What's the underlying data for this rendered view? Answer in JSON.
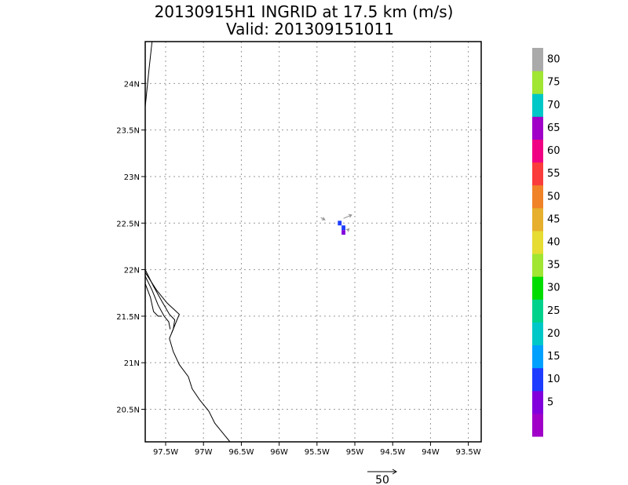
{
  "chart_data": {
    "type": "heatmap",
    "title": "20130915H1 INGRID at 17.5 km (m/s)",
    "subtitle": "Valid: 201309151011",
    "xlim": [
      -97.77,
      -93.33
    ],
    "ylim": [
      20.15,
      24.45
    ],
    "x_ticks": [
      {
        "value": -97.5,
        "label": "97.5W"
      },
      {
        "value": -97.0,
        "label": "97W"
      },
      {
        "value": -96.5,
        "label": "96.5W"
      },
      {
        "value": -96.0,
        "label": "96W"
      },
      {
        "value": -95.5,
        "label": "95.5W"
      },
      {
        "value": -95.0,
        "label": "95W"
      },
      {
        "value": -94.5,
        "label": "94.5W"
      },
      {
        "value": -94.0,
        "label": "94W"
      },
      {
        "value": -93.5,
        "label": "93.5W"
      }
    ],
    "y_ticks": [
      {
        "value": 20.5,
        "label": "20.5N"
      },
      {
        "value": 21.0,
        "label": "21N"
      },
      {
        "value": 21.5,
        "label": "21.5N"
      },
      {
        "value": 22.0,
        "label": "22N"
      },
      {
        "value": 22.5,
        "label": "22.5N"
      },
      {
        "value": 23.0,
        "label": "23N"
      },
      {
        "value": 23.5,
        "label": "23.5N"
      },
      {
        "value": 24.0,
        "label": "24N"
      }
    ],
    "grid": true,
    "colorbar": {
      "levels": [
        {
          "label": "",
          "color": "#a000c8"
        },
        {
          "label": "5",
          "color": "#8200dc"
        },
        {
          "label": "10",
          "color": "#1e3cff"
        },
        {
          "label": "15",
          "color": "#00a0ff"
        },
        {
          "label": "20",
          "color": "#00c8c8"
        },
        {
          "label": "25",
          "color": "#00d28c"
        },
        {
          "label": "30",
          "color": "#00dc00"
        },
        {
          "label": "35",
          "color": "#a0e632"
        },
        {
          "label": "40",
          "color": "#e6dc32"
        },
        {
          "label": "45",
          "color": "#e6af2d"
        },
        {
          "label": "50",
          "color": "#f08228"
        },
        {
          "label": "55",
          "color": "#fa3c3c"
        },
        {
          "label": "60",
          "color": "#f00082"
        },
        {
          "label": "65",
          "color": "#a000c8"
        },
        {
          "label": "70",
          "color": "#00c8c8"
        },
        {
          "label": "75",
          "color": "#a0e632"
        },
        {
          "label": "80",
          "color": "#aaaaaa"
        }
      ]
    },
    "cells": [
      {
        "lon": -95.2,
        "lat": 22.5,
        "speed": 12
      },
      {
        "lon": -95.15,
        "lat": 22.45,
        "speed": 12
      },
      {
        "lon": -95.15,
        "lat": 22.4,
        "speed": 8
      }
    ],
    "vectors": [
      {
        "lon": -95.45,
        "lat": 22.56,
        "u": 7,
        "v": -4
      },
      {
        "lon": -95.15,
        "lat": 22.55,
        "u": 14,
        "v": 6
      },
      {
        "lon": -95.1,
        "lat": 22.42,
        "u": 3,
        "v": 3
      }
    ],
    "reference_vector": {
      "label": "50",
      "magnitude": 50
    },
    "coastlines": [
      [
        [
          -97.68,
          24.45
        ],
        [
          -97.72,
          24.15
        ],
        [
          -97.77,
          23.75
        ]
      ],
      [
        [
          -97.77,
          22.0
        ],
        [
          -97.66,
          21.82
        ],
        [
          -97.55,
          21.66
        ],
        [
          -97.45,
          21.52
        ],
        [
          -97.38,
          21.46
        ],
        [
          -97.4,
          21.36
        ],
        [
          -97.45,
          21.26
        ],
        [
          -97.4,
          21.12
        ],
        [
          -97.32,
          20.98
        ],
        [
          -97.2,
          20.85
        ],
        [
          -97.15,
          20.72
        ],
        [
          -97.05,
          20.6
        ],
        [
          -96.93,
          20.48
        ],
        [
          -96.85,
          20.35
        ],
        [
          -96.72,
          20.22
        ],
        [
          -96.65,
          20.15
        ]
      ],
      [
        [
          -97.77,
          21.97
        ],
        [
          -97.62,
          21.78
        ],
        [
          -97.48,
          21.64
        ],
        [
          -97.32,
          21.52
        ],
        [
          -97.36,
          21.44
        ],
        [
          -97.42,
          21.32
        ]
      ],
      [
        [
          -97.77,
          21.93
        ],
        [
          -97.68,
          21.78
        ],
        [
          -97.6,
          21.62
        ],
        [
          -97.52,
          21.5
        ],
        [
          -97.46,
          21.44
        ],
        [
          -97.44,
          21.36
        ]
      ],
      [
        [
          -97.77,
          21.85
        ],
        [
          -97.7,
          21.7
        ],
        [
          -97.66,
          21.55
        ],
        [
          -97.6,
          21.5
        ],
        [
          -97.55,
          21.5
        ]
      ]
    ]
  }
}
